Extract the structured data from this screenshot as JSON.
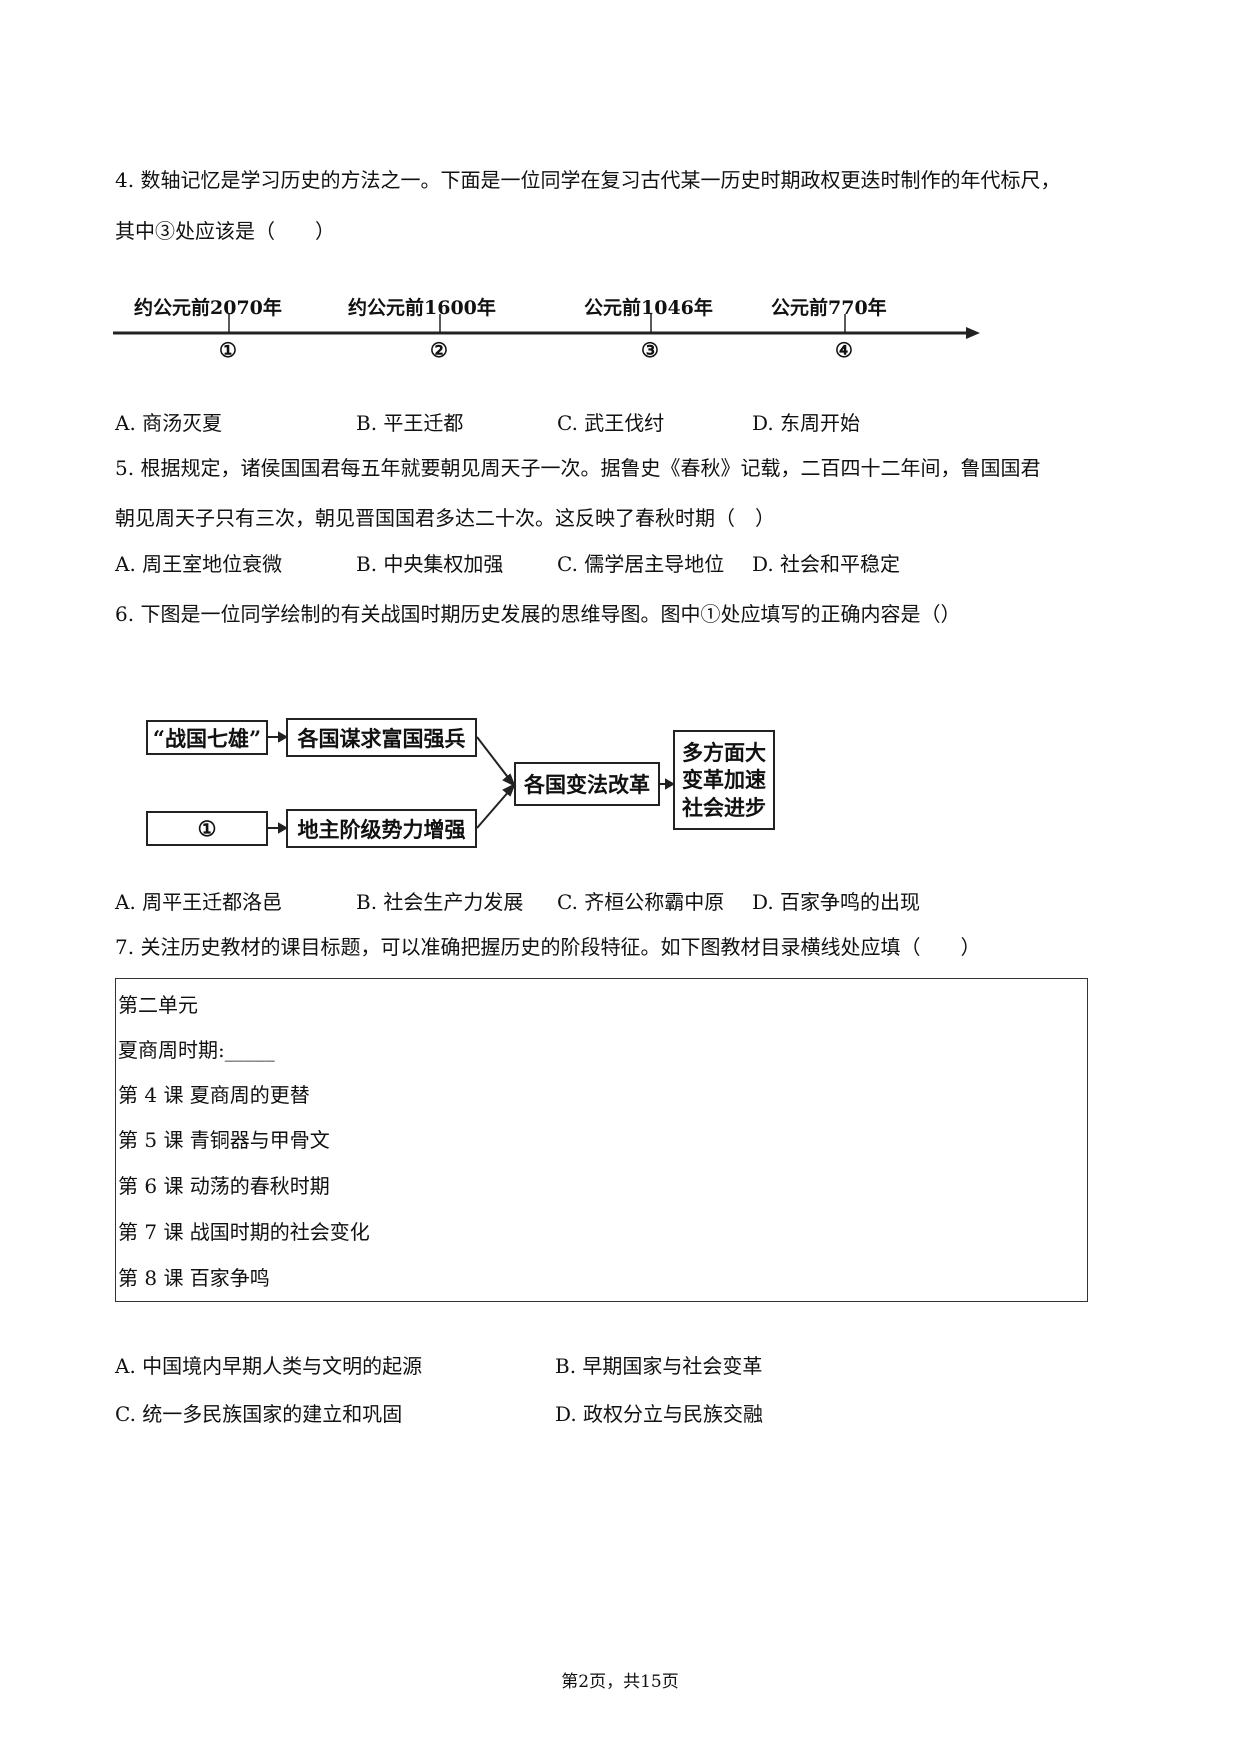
{
  "q4": {
    "line1": "4. 数轴记忆是学习历史的方法之一。下面是一位同学在复习古代某一历史时期政权更迭时制作的年代标尺，",
    "line2": "其中③处应该是（　　）",
    "timeline": [
      {
        "label": "约公元前2070年",
        "marker": "①"
      },
      {
        "label": "约公元前1600年",
        "marker": "②"
      },
      {
        "label": "公元前1046年",
        "marker": "③"
      },
      {
        "label": "公元前770年",
        "marker": "④"
      }
    ],
    "options": [
      "A. 商汤灭夏",
      "B. 平王迁都",
      "C. 武王伐纣",
      "D. 东周开始"
    ]
  },
  "q5": {
    "line1": "5. 根据规定，诸侯国国君每五年就要朝见周天子一次。据鲁史《春秋》记载，二百四十二年间，鲁国国君",
    "line2": "朝见周天子只有三次，朝见晋国国君多达二十次。这反映了春秋时期（　）",
    "options": [
      "A. 周王室地位衰微",
      "B. 中央集权加强",
      "C. 儒学居主导地位",
      "D. 社会和平稳定"
    ]
  },
  "q6": {
    "line1": "6. 下图是一位同学绘制的有关战国时期历史发展的思维导图。图中①处应填写的正确内容是（）",
    "mindmap": {
      "top_left": "“战国七雄”",
      "top_mid": "各国谋求富国强兵",
      "bottom_left": "①",
      "bottom_mid": "地主阶级势力增强",
      "center": "各国变法改革",
      "result": [
        "多方面大",
        "变革加速",
        "社会进步"
      ]
    },
    "options": [
      "A. 周平王迁都洛邑",
      "B. 社会生产力发展",
      "C. 齐桓公称霸中原",
      "D. 百家争鸣的出现"
    ]
  },
  "q7": {
    "line1": "7. 关注历史教材的课目标题，可以准确把握历史的阶段特征。如下图教材目录横线处应填（　　）",
    "toc": [
      "第二单元",
      "夏商周时期:_____",
      "第 4 课  夏商周的更替",
      "第 5 课  青铜器与甲骨文",
      "第 6 课  动荡的春秋时期",
      "第 7 课  战国时期的社会变化",
      "第 8 课  百家争鸣"
    ],
    "options": [
      "A. 中国境内早期人类与文明的起源",
      "B. 早期国家与社会变革",
      "C. 统一多民族国家的建立和巩固",
      "D. 政权分立与民族交融"
    ]
  },
  "footer": "第2页，共15页"
}
